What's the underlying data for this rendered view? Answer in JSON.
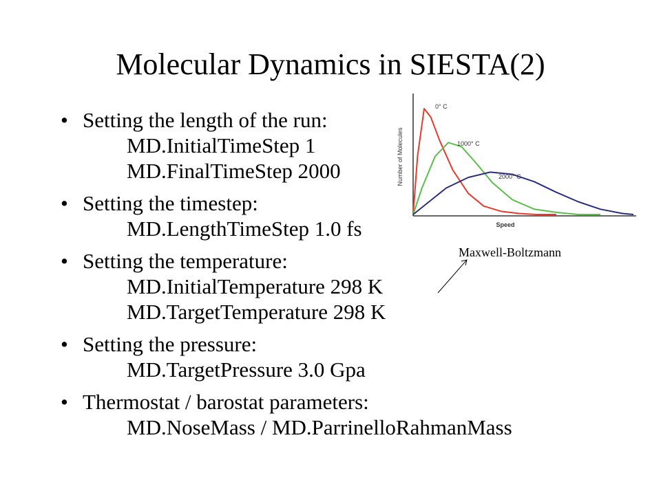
{
  "slide": {
    "title": "Molecular Dynamics in SIESTA(2)",
    "bullets": [
      {
        "head": "Setting the length of the run:",
        "lines": [
          "MD.InitialTimeStep 1",
          "MD.FinalTimeStep 2000"
        ]
      },
      {
        "head": "Setting the timestep:",
        "lines": [
          "MD.LengthTimeStep 1.0 fs"
        ]
      },
      {
        "head": "Setting the temperature:",
        "lines": [
          "MD.InitialTemperature 298 K",
          "MD.TargetTemperature 298 K"
        ]
      },
      {
        "head": "Setting the pressure:",
        "lines": [
          "MD.TargetPressure 3.0 Gpa"
        ]
      },
      {
        "head": "Thermostat / barostat parameters:",
        "lines": [
          "MD.NoseMass / MD.ParrinelloRahmanMass"
        ]
      }
    ],
    "annotation": "Maxwell-Boltzmann"
  },
  "chart_data": {
    "type": "line",
    "xlabel": "Speed",
    "ylabel": "Number of Molecules",
    "grid": false,
    "legend": "none",
    "series": [
      {
        "label": "0° C",
        "color": "#e8392b",
        "x": [
          0,
          0.02,
          0.05,
          0.08,
          0.12,
          0.18,
          0.25,
          0.32,
          0.4,
          0.48,
          0.56,
          0.65
        ],
        "y": [
          0,
          0.55,
          1.0,
          0.92,
          0.7,
          0.42,
          0.2,
          0.08,
          0.03,
          0.01,
          0.0,
          0.0
        ]
      },
      {
        "label": "1000° C",
        "color": "#5bbd4a",
        "x": [
          0,
          0.04,
          0.1,
          0.16,
          0.22,
          0.28,
          0.36,
          0.45,
          0.55,
          0.65,
          0.75,
          0.85
        ],
        "y": [
          0,
          0.25,
          0.55,
          0.68,
          0.64,
          0.5,
          0.3,
          0.14,
          0.05,
          0.02,
          0.0,
          0.0
        ]
      },
      {
        "label": "2000° C",
        "color": "#2b2d7c",
        "x": [
          0,
          0.06,
          0.15,
          0.25,
          0.35,
          0.45,
          0.55,
          0.65,
          0.75,
          0.85,
          0.95,
          1.0
        ],
        "y": [
          0,
          0.1,
          0.25,
          0.35,
          0.4,
          0.38,
          0.31,
          0.21,
          0.12,
          0.05,
          0.01,
          0.0
        ]
      }
    ]
  }
}
